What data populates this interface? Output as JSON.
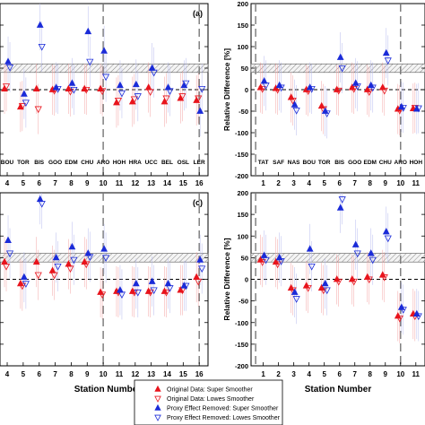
{
  "colors": {
    "original_super": "#e8141c",
    "original_lowes": "#e8141c",
    "proxy_super": "#1a2bd8",
    "proxy_lowes": "#1a2bd8",
    "error_bar_red": "#f3a0a0",
    "error_bar_blue": "#b4b8ee"
  },
  "legend": {
    "entries": [
      {
        "label": "Original Data: Super Smoother",
        "marker": "filled-up-triangle",
        "color": "#e8141c"
      },
      {
        "label": "Original Data: Lowes Smoother",
        "marker": "open-down-triangle",
        "color": "#e8141c"
      },
      {
        "label": "Proxy Effect Removed: Super Smoother",
        "marker": "filled-up-triangle",
        "color": "#1a2bd8"
      },
      {
        "label": "Proxy Effect Removed: Lowes Smoother",
        "marker": "open-down-triangle",
        "color": "#1a2bd8"
      }
    ]
  },
  "chart_data": [
    {
      "type": "scatter",
      "panel_label": "(a)",
      "ylabel": "",
      "xlabel": "",
      "ylim": [
        -200,
        200
      ],
      "station_numbers": [
        "4",
        "5",
        "6",
        "7",
        "8",
        "9",
        "10",
        "11",
        "12",
        "13",
        "14",
        "15",
        "16"
      ],
      "station_codes": [
        "BOU",
        "TOR",
        "BIS",
        "GOO",
        "EDM",
        "CHU",
        "ARO",
        "HOH",
        "HRA",
        "UCC",
        "BEL",
        "OSL",
        "LER"
      ],
      "x": [
        4,
        5,
        6,
        7,
        8,
        9,
        10,
        11,
        12,
        13,
        14,
        15,
        16
      ],
      "series": [
        {
          "values": [
            2,
            -40,
            2,
            0,
            2,
            2,
            2,
            -30,
            -28,
            5,
            -28,
            -20,
            -25
          ]
        },
        {
          "values": [
            8,
            -38,
            -45,
            -2,
            -4,
            0,
            -3,
            -25,
            -22,
            -5,
            -20,
            -15,
            -20
          ]
        },
        {
          "values": [
            65,
            -10,
            150,
            5,
            15,
            135,
            90,
            10,
            12,
            50,
            5,
            10,
            -50
          ]
        },
        {
          "values": [
            52,
            -30,
            100,
            2,
            0,
            65,
            30,
            -8,
            -15,
            40,
            -3,
            15,
            2
          ]
        }
      ],
      "dashed_vlines": [
        10,
        16
      ],
      "hatched_band": [
        40,
        60
      ]
    },
    {
      "type": "scatter",
      "panel_label": "",
      "ylabel": "Relative Difference [%]",
      "xlabel": "",
      "ylim": [
        -200,
        200
      ],
      "yticks": [
        -200,
        -150,
        -100,
        -50,
        0,
        50,
        100,
        150,
        200
      ],
      "station_numbers": [
        "1",
        "2",
        "3",
        "4",
        "5",
        "6",
        "7",
        "8",
        "9",
        "10",
        "11"
      ],
      "station_codes": [
        "TAT",
        "SAF",
        "NAS",
        "BOU",
        "TOR",
        "BIS",
        "GOO",
        "EDM",
        "CHU",
        "ARO",
        "HOH"
      ],
      "x": [
        1,
        2,
        3,
        4,
        5,
        6,
        7,
        8,
        9,
        10,
        11
      ],
      "series": [
        {
          "values": [
            5,
            3,
            -18,
            0,
            -38,
            0,
            5,
            0,
            5,
            -45,
            -44
          ]
        },
        {
          "values": [
            2,
            0,
            -25,
            -3,
            -45,
            -2,
            2,
            -5,
            -2,
            -48,
            -42
          ]
        },
        {
          "values": [
            20,
            10,
            -35,
            5,
            -50,
            75,
            15,
            10,
            85,
            -40,
            -45
          ]
        },
        {
          "values": [
            10,
            5,
            -48,
            2,
            -55,
            50,
            8,
            5,
            68,
            -42,
            -43
          ]
        }
      ],
      "dashed_vlines": [
        0.5,
        10
      ],
      "hatched_band": [
        40,
        60
      ]
    },
    {
      "type": "scatter",
      "panel_label": "(c)",
      "ylabel": "",
      "xlabel": "",
      "ylim": [
        -200,
        200
      ],
      "station_numbers": [
        "4",
        "5",
        "6",
        "7",
        "8",
        "9",
        "10",
        "11",
        "12",
        "13",
        "14",
        "15",
        "16"
      ],
      "station_codes": [],
      "x": [
        4,
        5,
        6,
        7,
        8,
        9,
        10,
        11,
        12,
        13,
        14,
        15,
        16
      ],
      "series": [
        {
          "values": [
            40,
            -10,
            40,
            20,
            35,
            40,
            -30,
            -28,
            -28,
            -28,
            -28,
            -25,
            5
          ]
        },
        {
          "values": [
            30,
            -15,
            10,
            10,
            25,
            35,
            -35,
            -30,
            -30,
            -30,
            -30,
            -25,
            -5
          ]
        },
        {
          "values": [
            90,
            5,
            185,
            50,
            75,
            60,
            70,
            -25,
            -10,
            -5,
            -10,
            -15,
            45
          ]
        },
        {
          "values": [
            60,
            -10,
            175,
            30,
            45,
            52,
            50,
            -35,
            -30,
            -25,
            -20,
            -15,
            25
          ]
        }
      ],
      "dashed_vlines": [
        10,
        16
      ],
      "hatched_band": [
        40,
        60
      ]
    },
    {
      "type": "scatter",
      "panel_label": "",
      "ylabel": "Relative Difference [%]",
      "xlabel": "Station Number",
      "ylim": [
        -200,
        200
      ],
      "yticks": [
        -200,
        -150,
        -100,
        -50,
        0,
        50,
        100,
        150,
        200
      ],
      "station_numbers": [
        "1",
        "2",
        "3",
        "4",
        "5",
        "6",
        "7",
        "8",
        "9",
        "10",
        "11"
      ],
      "station_codes": [],
      "x": [
        1,
        2,
        3,
        4,
        5,
        6,
        7,
        8,
        9,
        10,
        11
      ],
      "series": [
        {
          "values": [
            45,
            40,
            -20,
            -15,
            -20,
            0,
            0,
            5,
            10,
            -85,
            -80
          ]
        },
        {
          "values": [
            40,
            35,
            -25,
            -20,
            -25,
            -5,
            -5,
            0,
            5,
            -90,
            -85
          ]
        },
        {
          "values": [
            55,
            50,
            -30,
            70,
            -10,
            165,
            80,
            60,
            110,
            -65,
            -80
          ]
        },
        {
          "values": [
            45,
            42,
            -45,
            30,
            -25,
            185,
            60,
            45,
            95,
            -70,
            -85
          ]
        }
      ],
      "dashed_vlines": [
        0.5,
        10
      ],
      "hatched_band": [
        40,
        60
      ]
    }
  ],
  "bottom_left_xlabel": "Station Number"
}
